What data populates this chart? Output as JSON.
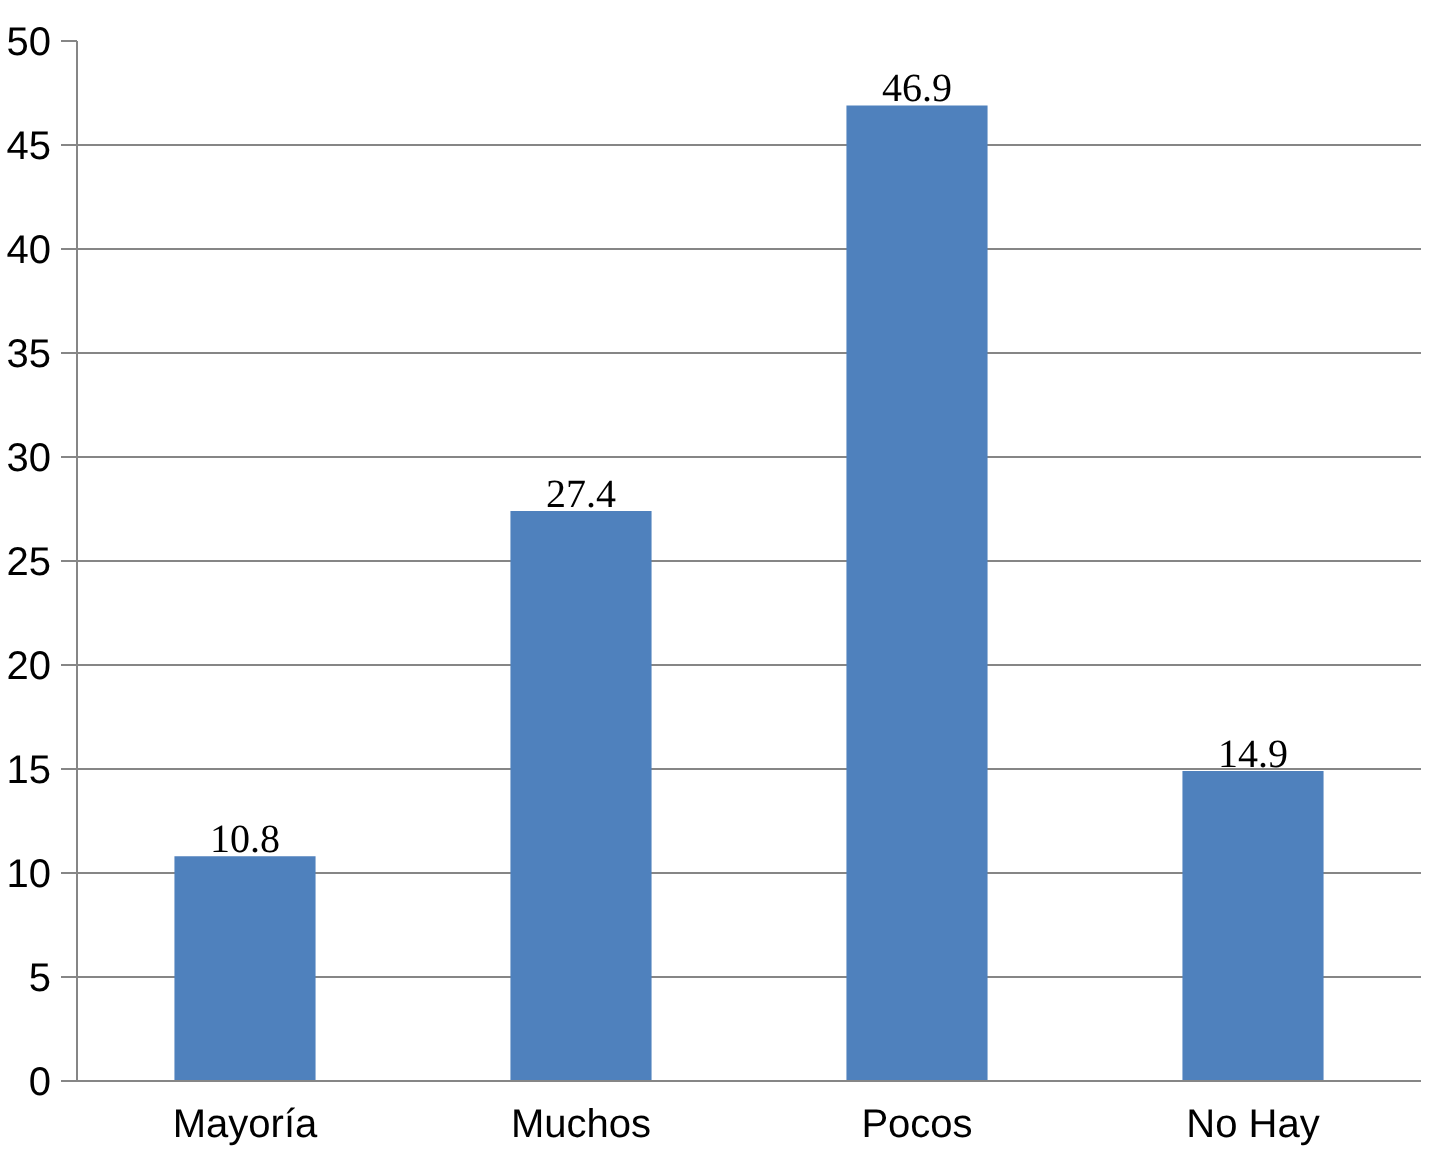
{
  "chart_data": {
    "type": "bar",
    "categories": [
      "Mayoría",
      "Muchos",
      "Pocos",
      "No Hay"
    ],
    "values": [
      10.8,
      27.4,
      46.9,
      14.9
    ],
    "color": "#4f81bd",
    "ylim": [
      0,
      50
    ],
    "yticks": [
      0,
      5,
      10,
      15,
      20,
      25,
      30,
      35,
      40,
      45,
      50
    ],
    "grid": "y",
    "data_labels": true
  }
}
